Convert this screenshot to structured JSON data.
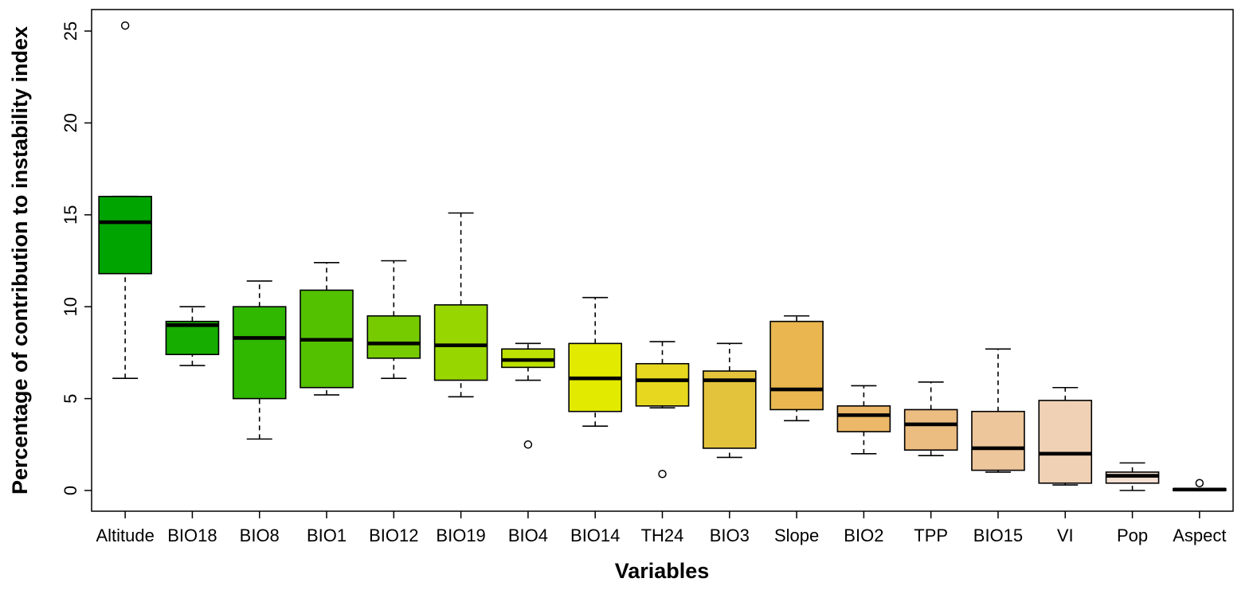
{
  "chart_data": {
    "type": "boxplot",
    "title": "",
    "xlabel": "Variables",
    "ylabel": "Percentage of contribution to instability index",
    "ylim": [
      0,
      25
    ],
    "yticks": [
      0,
      5,
      10,
      15,
      20,
      25
    ],
    "grid": false,
    "legend": "none",
    "frame": "full-box",
    "whisker_style": "dashed",
    "categories": [
      "Altitude",
      "BIO18",
      "BIO8",
      "BIO1",
      "BIO12",
      "BIO19",
      "BIO4",
      "BIO14",
      "TH24",
      "BIO3",
      "Slope",
      "BIO2",
      "TPP",
      "BIO15",
      "VI",
      "Pop",
      "Aspect"
    ],
    "boxes": [
      {
        "label": "Altitude",
        "color": "#00A400",
        "low": 6.1,
        "q1": 11.8,
        "median": 14.6,
        "q3": 16.0,
        "high": 16.0,
        "outliers": [
          25.3
        ]
      },
      {
        "label": "BIO18",
        "color": "#17AC00",
        "low": 6.8,
        "q1": 7.4,
        "median": 9.0,
        "q3": 9.2,
        "high": 10.0,
        "outliers": []
      },
      {
        "label": "BIO8",
        "color": "#30B700",
        "low": 2.8,
        "q1": 5.0,
        "median": 8.3,
        "q3": 10.0,
        "high": 11.4,
        "outliers": []
      },
      {
        "label": "BIO1",
        "color": "#53C000",
        "low": 5.2,
        "q1": 5.6,
        "median": 8.2,
        "q3": 10.9,
        "high": 12.4,
        "outliers": []
      },
      {
        "label": "BIO12",
        "color": "#75CB00",
        "low": 6.1,
        "q1": 7.2,
        "median": 8.0,
        "q3": 9.5,
        "high": 12.5,
        "outliers": []
      },
      {
        "label": "BIO19",
        "color": "#98D600",
        "low": 5.1,
        "q1": 6.0,
        "median": 7.9,
        "q3": 10.1,
        "high": 15.1,
        "outliers": []
      },
      {
        "label": "BIO4",
        "color": "#BCE100",
        "low": 6.0,
        "q1": 6.7,
        "median": 7.1,
        "q3": 7.7,
        "high": 8.0,
        "outliers": [
          2.5
        ]
      },
      {
        "label": "BIO14",
        "color": "#E2EA00",
        "low": 3.5,
        "q1": 4.3,
        "median": 6.1,
        "q3": 8.0,
        "high": 10.5,
        "outliers": []
      },
      {
        "label": "TH24",
        "color": "#E7D81F",
        "low": 4.5,
        "q1": 4.6,
        "median": 6.0,
        "q3": 6.9,
        "high": 8.1,
        "outliers": [
          0.9
        ]
      },
      {
        "label": "BIO3",
        "color": "#E3C23C",
        "low": 1.8,
        "q1": 2.3,
        "median": 6.0,
        "q3": 6.5,
        "high": 8.0,
        "outliers": []
      },
      {
        "label": "Slope",
        "color": "#E9B64F",
        "low": 3.8,
        "q1": 4.4,
        "median": 5.5,
        "q3": 9.2,
        "high": 9.5,
        "outliers": []
      },
      {
        "label": "BIO2",
        "color": "#EBB768",
        "low": 2.0,
        "q1": 3.2,
        "median": 4.1,
        "q3": 4.6,
        "high": 5.7,
        "outliers": []
      },
      {
        "label": "TPP",
        "color": "#ECBD81",
        "low": 1.9,
        "q1": 2.2,
        "median": 3.6,
        "q3": 4.4,
        "high": 5.9,
        "outliers": []
      },
      {
        "label": "BIO15",
        "color": "#EEC69B",
        "low": 1.0,
        "q1": 1.1,
        "median": 2.3,
        "q3": 4.3,
        "high": 7.7,
        "outliers": []
      },
      {
        "label": "VI",
        "color": "#F0D1B6",
        "low": 0.3,
        "q1": 0.4,
        "median": 2.0,
        "q3": 4.9,
        "high": 5.6,
        "outliers": []
      },
      {
        "label": "Pop",
        "color": "#F4E0D2",
        "low": 0.0,
        "q1": 0.4,
        "median": 0.8,
        "q3": 1.0,
        "high": 1.5,
        "outliers": []
      },
      {
        "label": "Aspect",
        "color": "#F8EFE9",
        "low": 0.0,
        "q1": 0.0,
        "median": 0.05,
        "q3": 0.1,
        "high": 0.1,
        "outliers": [
          0.4
        ]
      }
    ]
  }
}
